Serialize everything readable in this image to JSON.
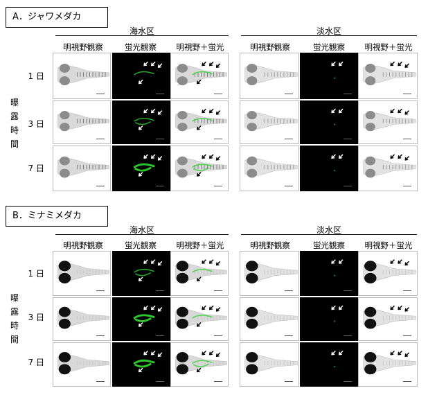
{
  "sections": [
    {
      "label": "A．ジャワメダカ",
      "groups": [
        {
          "title": "海水区",
          "columns": [
            "明視野観察",
            "蛍光観察",
            "明視野＋蛍光"
          ]
        },
        {
          "title": "淡水区",
          "columns": [
            "明視野観察",
            "蛍光観察",
            "明視野＋蛍光"
          ]
        }
      ],
      "days": [
        "1 日",
        "3 日",
        "7 日"
      ],
      "side_label": [
        "曝",
        "露",
        "時",
        "間"
      ]
    },
    {
      "label": "B．ミナミメダカ",
      "groups": [
        {
          "title": "海水区",
          "columns": [
            "明視野観察",
            "蛍光観察",
            "明視野＋蛍光"
          ]
        },
        {
          "title": "淡水区",
          "columns": [
            "明視野観察",
            "蛍光観察",
            "明視野＋蛍光"
          ]
        }
      ],
      "days": [
        "1 日",
        "3 日",
        "7 日"
      ],
      "side_label": [
        "曝",
        "露",
        "時",
        "間"
      ]
    }
  ],
  "colors": {
    "fluorescence": "#2fd22f",
    "arrow_on_dark": "#ffffff",
    "arrow_on_light": "#000000"
  }
}
